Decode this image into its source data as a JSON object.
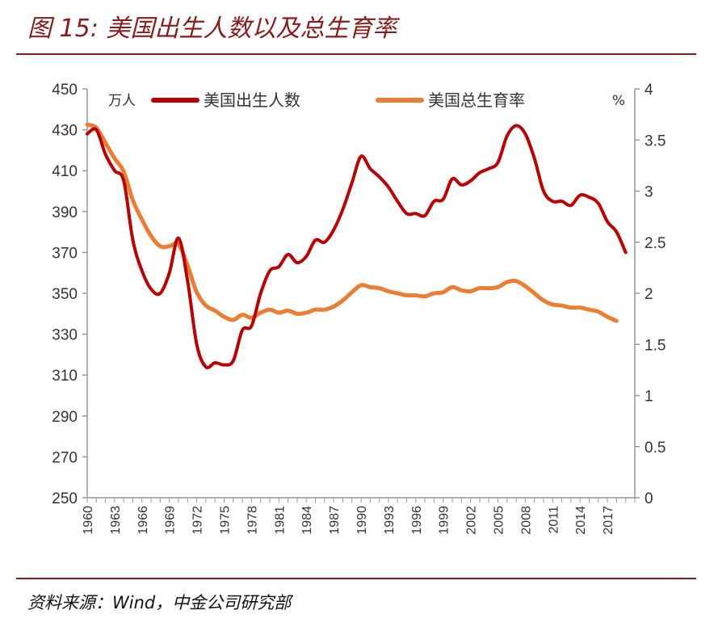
{
  "header": {
    "title": "图 15:  美国出生人数以及总生育率"
  },
  "footer": {
    "source": "资料来源：Wind，中金公司研究部"
  },
  "chart_data": {
    "type": "line",
    "left_unit": "万人",
    "right_unit": "%",
    "y_left": {
      "min": 250,
      "max": 450,
      "ticks": [
        250,
        270,
        290,
        310,
        330,
        350,
        370,
        390,
        410,
        430,
        450
      ]
    },
    "y_right": {
      "min": 0,
      "max": 4,
      "ticks": [
        "0",
        "0.5",
        "1",
        "1.5",
        "2",
        "2.5",
        "3",
        "3.5",
        "4"
      ]
    },
    "x_ticks": [
      "1960",
      "1963",
      "1966",
      "1969",
      "1972",
      "1975",
      "1978",
      "1981",
      "1984",
      "1987",
      "1990",
      "1993",
      "1996",
      "1999",
      "2002",
      "2005",
      "2008",
      "2011",
      "2014",
      "2017"
    ],
    "colors": {
      "births": "#C00000",
      "fertility": "#ED7D31"
    },
    "series": [
      {
        "name": "美国出生人数",
        "axis": "left",
        "x": [
          1960,
          1961,
          1962,
          1963,
          1964,
          1965,
          1966,
          1967,
          1968,
          1969,
          1970,
          1971,
          1972,
          1973,
          1974,
          1975,
          1976,
          1977,
          1978,
          1979,
          1980,
          1981,
          1982,
          1983,
          1984,
          1985,
          1986,
          1987,
          1988,
          1989,
          1990,
          1991,
          1992,
          1993,
          1994,
          1995,
          1996,
          1997,
          1998,
          1999,
          2000,
          2001,
          2002,
          2003,
          2004,
          2005,
          2006,
          2007,
          2008,
          2009,
          2010,
          2011,
          2012,
          2013,
          2014,
          2015,
          2016,
          2017,
          2018,
          2019
        ],
        "values": [
          428,
          430,
          418,
          410,
          405,
          376,
          361,
          352,
          350,
          360,
          377,
          356,
          325,
          314,
          316,
          315,
          317,
          332,
          334,
          350,
          361,
          363,
          369,
          365,
          368,
          376,
          375,
          381,
          391,
          404,
          417,
          411,
          407,
          402,
          395,
          389,
          389,
          388,
          395,
          396,
          406,
          403,
          405,
          409,
          411,
          414,
          427,
          432,
          428,
          416,
          400,
          395,
          395,
          393,
          398,
          397,
          394,
          385,
          380,
          370
        ]
      },
      {
        "name": "美国总生育率",
        "axis": "right",
        "x": [
          1960,
          1961,
          1962,
          1963,
          1964,
          1965,
          1966,
          1967,
          1968,
          1969,
          1970,
          1971,
          1972,
          1973,
          1974,
          1975,
          1976,
          1977,
          1978,
          1979,
          1980,
          1981,
          1982,
          1983,
          1984,
          1985,
          1986,
          1987,
          1988,
          1989,
          1990,
          1991,
          1992,
          1993,
          1994,
          1995,
          1996,
          1997,
          1998,
          1999,
          2000,
          2001,
          2002,
          2003,
          2004,
          2005,
          2006,
          2007,
          2008,
          2009,
          2010,
          2011,
          2012,
          2013,
          2014,
          2015,
          2016,
          2017,
          2018
        ],
        "values": [
          3.65,
          3.62,
          3.47,
          3.32,
          3.19,
          2.91,
          2.72,
          2.56,
          2.46,
          2.46,
          2.48,
          2.27,
          2.01,
          1.88,
          1.83,
          1.77,
          1.74,
          1.79,
          1.76,
          1.81,
          1.84,
          1.81,
          1.83,
          1.8,
          1.81,
          1.84,
          1.84,
          1.87,
          1.93,
          2.01,
          2.08,
          2.06,
          2.05,
          2.02,
          2.0,
          1.98,
          1.98,
          1.97,
          2.0,
          2.01,
          2.06,
          2.03,
          2.02,
          2.05,
          2.05,
          2.06,
          2.11,
          2.12,
          2.07,
          2.0,
          1.93,
          1.89,
          1.88,
          1.86,
          1.86,
          1.84,
          1.82,
          1.77,
          1.73
        ]
      }
    ]
  }
}
